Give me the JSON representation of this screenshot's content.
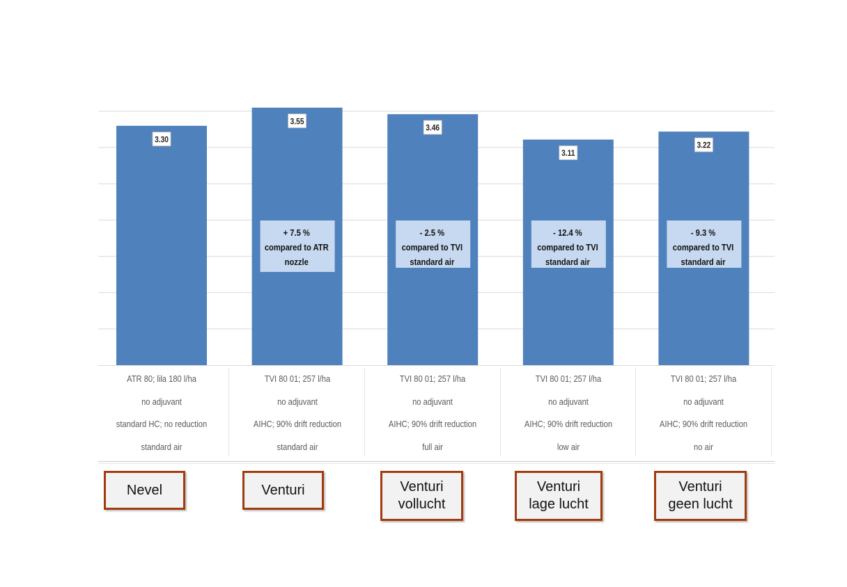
{
  "chart_data": {
    "type": "bar",
    "title": "",
    "xlabel": "",
    "ylabel": "",
    "ylim": [
      0,
      3.5
    ],
    "grid": true,
    "legend": "none",
    "colors": {
      "bar": "#4f81bd",
      "annotation_bg": "#c6d9f1",
      "label_bg": "#ffffff",
      "gridline": "#d9d9d9"
    },
    "categories": [
      [
        "ATR 80; lila 180 l/ha",
        "no adjuvant",
        "standard HC; no reduction",
        "standard air"
      ],
      [
        "TVI 80 01; 257 l/ha",
        "no adjuvant",
        "AIHC; 90% drift reduction",
        "standard air"
      ],
      [
        "TVI 80 01; 257 l/ha",
        "no adjuvant",
        "AIHC; 90% drift reduction",
        "full air"
      ],
      [
        "TVI 80 01; 257 l/ha",
        "no adjuvant",
        "AIHC; 90% drift reduction",
        "low air"
      ],
      [
        "TVI 80 01; 257 l/ha",
        "no adjuvant",
        "AIHC; 90% drift reduction",
        "no air"
      ]
    ],
    "values": [
      3.3,
      3.55,
      3.46,
      3.11,
      3.22
    ],
    "data_labels": [
      "3.30",
      "3.55",
      "3.46",
      "3.11",
      "3.22"
    ],
    "annotations": [
      null,
      [
        "+ 7.5 %",
        "compared to ATR",
        "nozzle"
      ],
      [
        "- 2.5 %",
        "compared to TVI",
        "standard air"
      ],
      [
        "- 12.4 %",
        "compared to TVI",
        "standard air"
      ],
      [
        "- 9.3 %",
        "compared to TVI",
        "standard air"
      ]
    ]
  },
  "nozzle_labels": [
    [
      "Nevel"
    ],
    [
      "Venturi"
    ],
    [
      "Venturi",
      "vollucht"
    ],
    [
      "Venturi",
      "lage lucht"
    ],
    [
      "Venturi",
      "geen lucht"
    ]
  ]
}
